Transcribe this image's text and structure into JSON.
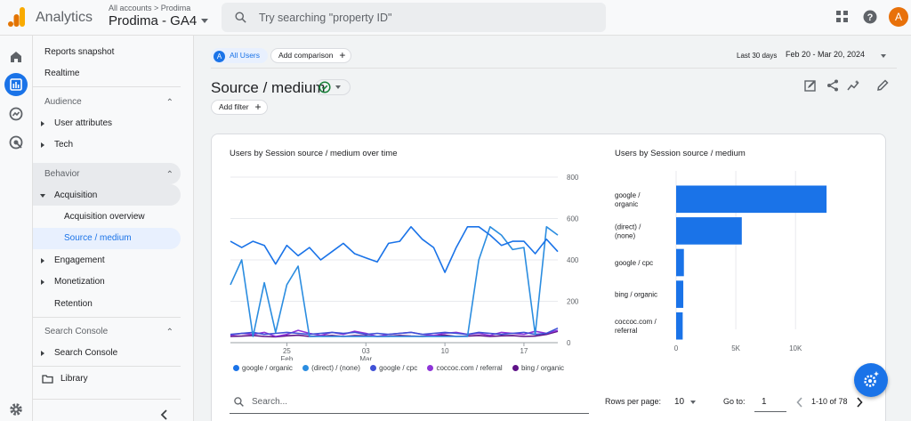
{
  "header": {
    "brand": "Analytics",
    "breadcrumb": "All accounts > Prodima",
    "property_name": "Prodima - GA4",
    "search_placeholder": "Try searching \"property ID\"",
    "avatar_letter": "A"
  },
  "sidebar": {
    "reports_snapshot": "Reports snapshot",
    "realtime": "Realtime",
    "audience": "Audience",
    "user_attributes": "User attributes",
    "tech": "Tech",
    "behavior": "Behavior",
    "acquisition": "Acquisition",
    "acquisition_overview": "Acquisition overview",
    "source_medium": "Source / medium",
    "engagement": "Engagement",
    "monetization": "Monetization",
    "retention": "Retention",
    "search_console_section": "Search Console",
    "search_console_item": "Search Console",
    "library": "Library"
  },
  "toolbar": {
    "all_users": "All Users",
    "all_users_badge": "A",
    "add_comparison": "Add comparison",
    "date_label": "Last 30 days",
    "date_range": "Feb 20 - Mar 20, 2024",
    "add_filter": "Add filter"
  },
  "page_title": "Source / medium",
  "line_chart_title": "Users by Session source / medium over time",
  "bar_chart_title": "Users by Session source / medium",
  "table": {
    "search_placeholder": "Search...",
    "rows_per_page_label": "Rows per page:",
    "rows_per_page": "10",
    "goto_label": "Go to:",
    "goto_value": "1",
    "range": "1-10 of 78"
  },
  "colors": {
    "google_organic": "#1a73e8",
    "direct_none": "#2b8de0",
    "google_cpc": "#3f51d6",
    "coccoc_referral": "#8e35d8",
    "bing_organic": "#5e1287"
  },
  "chart_data": [
    {
      "type": "line",
      "title": "Users by Session source / medium over time",
      "x_ticks": [
        "25",
        "03",
        "10",
        "17"
      ],
      "x_subticks": [
        "Feb",
        "Mar",
        "",
        ""
      ],
      "ylim": [
        0,
        800
      ],
      "y_ticks": [
        0,
        200,
        400,
        600,
        800
      ],
      "y_axis_side": "right",
      "legend_position": "bottom",
      "x": [
        "Feb 20",
        "Feb 21",
        "Feb 22",
        "Feb 23",
        "Feb 24",
        "Feb 25",
        "Feb 26",
        "Feb 27",
        "Feb 28",
        "Feb 29",
        "Mar 1",
        "Mar 2",
        "Mar 3",
        "Mar 4",
        "Mar 5",
        "Mar 6",
        "Mar 7",
        "Mar 8",
        "Mar 9",
        "Mar 10",
        "Mar 11",
        "Mar 12",
        "Mar 13",
        "Mar 14",
        "Mar 15",
        "Mar 16",
        "Mar 17",
        "Mar 18",
        "Mar 19",
        "Mar 20"
      ],
      "series": [
        {
          "name": "google / organic",
          "values": [
            490,
            460,
            490,
            470,
            380,
            470,
            420,
            460,
            400,
            440,
            480,
            430,
            410,
            390,
            480,
            490,
            560,
            500,
            460,
            340,
            460,
            560,
            560,
            520,
            470,
            490,
            490,
            430,
            500,
            440
          ]
        },
        {
          "name": "(direct) / (none)",
          "values": [
            280,
            400,
            30,
            290,
            50,
            280,
            370,
            30,
            30,
            30,
            30,
            30,
            30,
            30,
            30,
            30,
            30,
            30,
            30,
            30,
            30,
            30,
            400,
            560,
            520,
            450,
            460,
            40,
            560,
            520
          ]
        },
        {
          "name": "google / cpc",
          "values": [
            40,
            45,
            50,
            40,
            45,
            50,
            45,
            40,
            45,
            50,
            45,
            50,
            40,
            45,
            40,
            45,
            50,
            40,
            45,
            50,
            45,
            40,
            50,
            45,
            40,
            45,
            50,
            40,
            45,
            70
          ]
        },
        {
          "name": "coccoc.com / referral",
          "values": [
            35,
            45,
            40,
            50,
            30,
            40,
            60,
            45,
            35,
            50,
            40,
            55,
            45,
            30,
            40,
            45,
            50,
            40,
            35,
            45,
            50,
            40,
            45,
            35,
            50,
            45,
            40,
            55,
            45,
            60
          ]
        },
        {
          "name": "bing / organic",
          "values": [
            30,
            32,
            35,
            30,
            28,
            33,
            36,
            30,
            32,
            35,
            30,
            34,
            33,
            30,
            31,
            35,
            32,
            30,
            33,
            36,
            30,
            32,
            35,
            30,
            33,
            34,
            30,
            32,
            40,
            55
          ]
        }
      ]
    },
    {
      "type": "bar",
      "orientation": "horizontal",
      "title": "Users by Session source / medium",
      "categories": [
        [
          "google /",
          "organic"
        ],
        [
          "(direct) /",
          "(none)"
        ],
        [
          "google / cpc"
        ],
        [
          "bing / organic"
        ],
        [
          "coccoc.com /",
          "referral"
        ]
      ],
      "values": [
        12600,
        5500,
        650,
        600,
        550
      ],
      "x_ticks": [
        "0",
        "5K",
        "10K"
      ],
      "xlim": [
        0,
        15500
      ]
    }
  ]
}
